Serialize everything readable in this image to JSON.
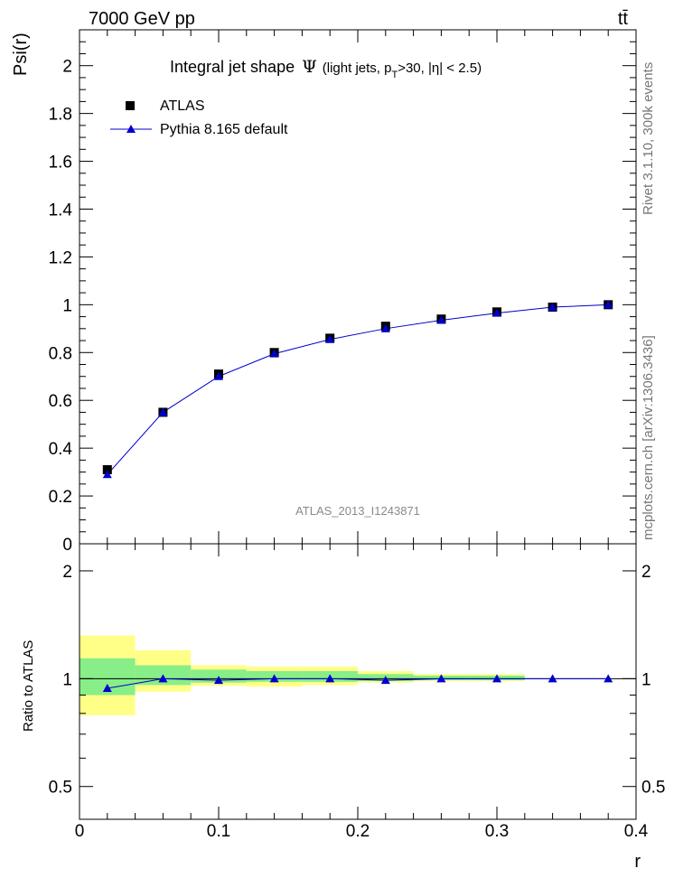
{
  "header": {
    "energy_label": "7000 GeV pp",
    "process_label": "tt̄"
  },
  "side_text": {
    "rivet_label": "Rivet 3.1.10,  300k events",
    "mcplots_label": "mcplots.cern.ch [arXiv:1306.3436]"
  },
  "watermark": "ATLAS_2013_I1243871",
  "chart_data": [
    {
      "type": "scatter",
      "title": "Integral jet shape  Ψ (light jets, pT>30, |η| < 2.5)",
      "title_parts": {
        "main": "Integral jet shape",
        "psi": "Ψ",
        "open": "(light jets, p",
        "sub": "T",
        "rest": ">30, |η| < 2.5)"
      },
      "xlabel": "r",
      "ylabel": "Psi(r)",
      "xlim": [
        0,
        0.4
      ],
      "ylim": [
        0,
        2.15
      ],
      "x_ticks": [
        0,
        0.1,
        0.2,
        0.3,
        0.4
      ],
      "y_ticks": [
        0,
        0.2,
        0.4,
        0.6,
        0.8,
        1,
        1.2,
        1.4,
        1.6,
        1.8,
        2
      ],
      "y_tick_labels": [
        "0",
        "0.2",
        "0.4",
        "0.6",
        "0.8",
        "1",
        "1.2",
        "1.4",
        "1.6",
        "1.8",
        "2"
      ],
      "legend_position": "top-left",
      "x": [
        0.02,
        0.06,
        0.1,
        0.14,
        0.18,
        0.22,
        0.26,
        0.3,
        0.34,
        0.38
      ],
      "series": [
        {
          "name": "ATLAS",
          "marker": "square",
          "color": "#000000",
          "values": [
            0.31,
            0.55,
            0.71,
            0.8,
            0.86,
            0.91,
            0.94,
            0.97,
            0.99,
            1.0
          ]
        },
        {
          "name": "Pythia 8.165 default",
          "marker": "triangle",
          "color": "#0000cc",
          "values": [
            0.29,
            0.55,
            0.7,
            0.795,
            0.855,
            0.9,
            0.935,
            0.965,
            0.99,
            1.0
          ]
        }
      ]
    },
    {
      "type": "line",
      "title": "",
      "xlabel": "r",
      "ylabel": "Ratio to ATLAS",
      "xlim": [
        0,
        0.4
      ],
      "ylim": [
        0.4,
        2.4
      ],
      "y_scale": "log",
      "x_ticks": [
        0,
        0.1,
        0.2,
        0.3,
        0.4
      ],
      "x_tick_labels": [
        "0",
        "0.1",
        "0.2",
        "0.3",
        "0.4"
      ],
      "y_ticks": [
        0.5,
        1,
        2
      ],
      "y_tick_labels": [
        "0.5",
        "1",
        "2"
      ],
      "reference_line": 1,
      "uncertainty_bands": {
        "bin_edges": [
          0.0,
          0.04,
          0.08,
          0.12,
          0.16,
          0.2,
          0.24,
          0.28,
          0.32
        ],
        "inner_color": "#88ee88",
        "outer_color": "#ffff88",
        "inner": [
          [
            0.9,
            1.14
          ],
          [
            0.96,
            1.09
          ],
          [
            0.975,
            1.06
          ],
          [
            0.98,
            1.05
          ],
          [
            0.98,
            1.05
          ],
          [
            0.985,
            1.03
          ],
          [
            0.99,
            1.02
          ],
          [
            0.99,
            1.02
          ]
        ],
        "outer": [
          [
            0.79,
            1.32
          ],
          [
            0.92,
            1.2
          ],
          [
            0.955,
            1.09
          ],
          [
            0.95,
            1.08
          ],
          [
            0.96,
            1.08
          ],
          [
            0.975,
            1.05
          ],
          [
            0.985,
            1.03
          ],
          [
            0.985,
            1.03
          ]
        ]
      },
      "x": [
        0.02,
        0.06,
        0.1,
        0.14,
        0.18,
        0.22,
        0.26,
        0.3,
        0.34,
        0.38
      ],
      "series": [
        {
          "name": "Pythia 8.165 default",
          "color": "#0000cc",
          "values": [
            0.94,
            1.0,
            0.99,
            1.0,
            1.0,
            0.99,
            1.0,
            1.0,
            1.0,
            1.0
          ]
        }
      ]
    }
  ]
}
